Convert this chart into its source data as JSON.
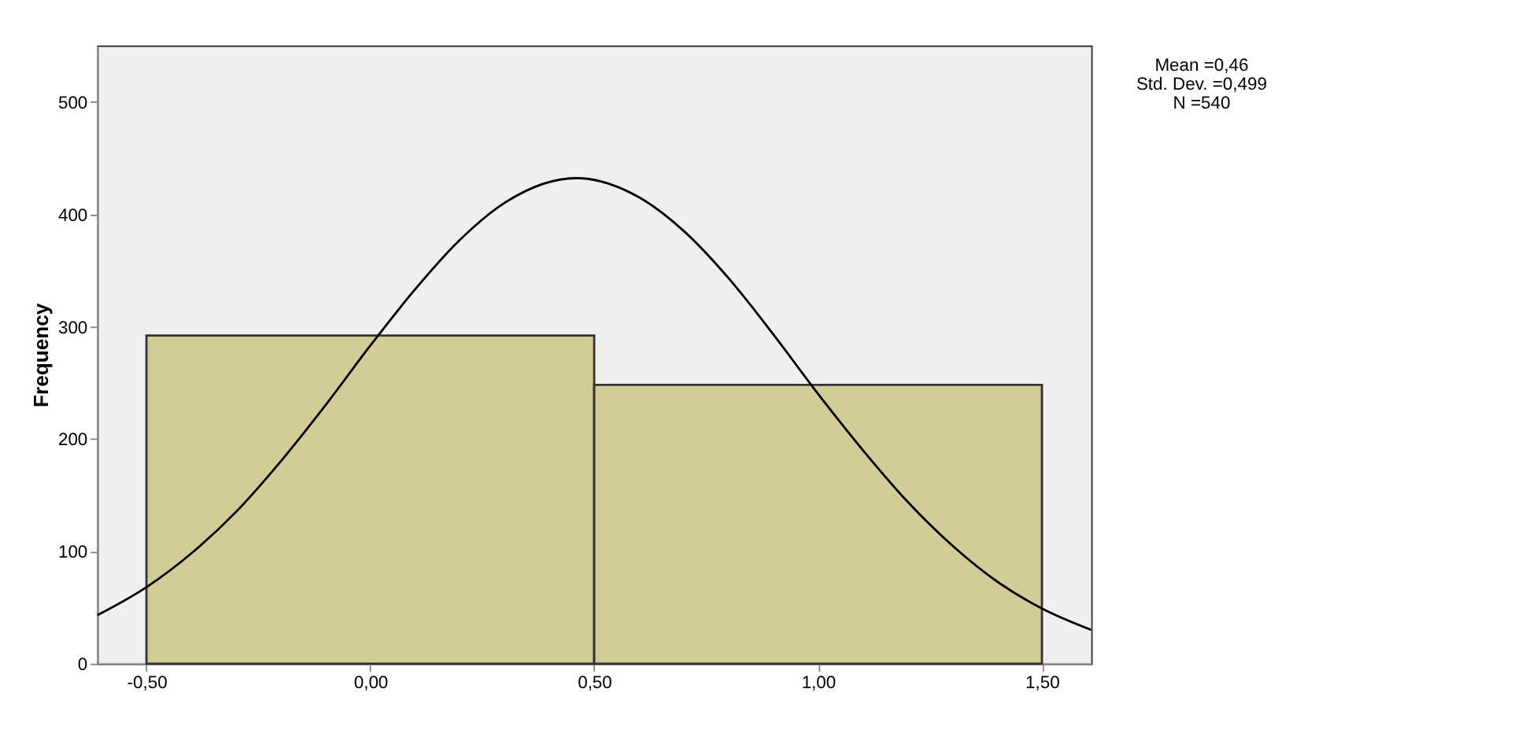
{
  "chart_data": {
    "type": "histogram",
    "ylabel": "Frequency",
    "bins": [
      -0.5,
      0.5,
      1.5
    ],
    "series": [
      {
        "color": "#d2cc96",
        "values": [
          292,
          248
        ]
      },
      {
        "type": "line",
        "color": "#000000",
        "x": [
          -0.61,
          -0.5,
          -0.4,
          -0.3,
          -0.2,
          -0.1,
          0,
          0.1,
          0.2,
          0.3,
          0.46,
          0.6,
          0.7,
          0.8,
          0.9,
          1.0,
          1.1,
          1.2,
          1.3,
          1.4,
          1.5,
          1.61
        ],
        "values": [
          43,
          68,
          98,
          135,
          180,
          230,
          283,
          333,
          377,
          410,
          432,
          415,
          385,
          343,
          293,
          240,
          190,
          144,
          105,
          73,
          49,
          30
        ]
      }
    ],
    "xlim": [
      -0.61,
      1.61
    ],
    "xticks": [
      {
        "value": -0.5,
        "label": "-0,50"
      },
      {
        "value": 0,
        "label": "0,00"
      },
      {
        "value": 0.5,
        "label": "0,50"
      },
      {
        "value": 1,
        "label": "1,00"
      },
      {
        "value": 1.5,
        "label": "1,50"
      }
    ],
    "ylim": [
      0,
      550
    ],
    "yticks": [
      0,
      100,
      200,
      300,
      400,
      500
    ],
    "annotations": [
      "Mean =0,46",
      "Std. Dev. =0,499",
      "N =540"
    ],
    "grid": false
  }
}
